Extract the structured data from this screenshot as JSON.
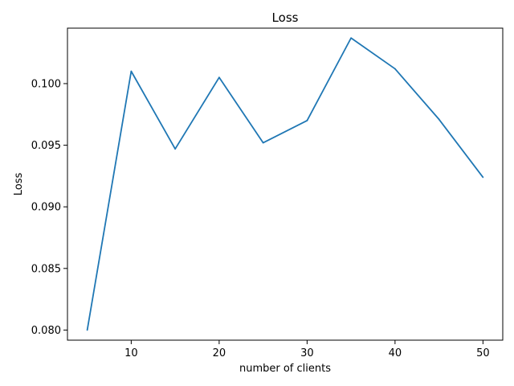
{
  "chart_data": {
    "type": "line",
    "title": "Loss",
    "xlabel": "number of clients",
    "ylabel": "Loss",
    "grid": false,
    "legend": "none",
    "xlim": [
      2.75,
      52.25
    ],
    "ylim": [
      0.07918,
      0.1045
    ],
    "xticks": [
      10,
      20,
      30,
      40,
      50
    ],
    "xtick_labels": [
      "10",
      "20",
      "30",
      "40",
      "50"
    ],
    "yticks": [
      0.08,
      0.085,
      0.09,
      0.095,
      0.1
    ],
    "ytick_labels": [
      "0.080",
      "0.085",
      "0.090",
      "0.095",
      "0.100"
    ],
    "series": [
      {
        "color": "#1f77b4",
        "x": [
          5,
          10,
          15,
          20,
          25,
          30,
          35,
          40,
          45,
          50
        ],
        "y": [
          0.08,
          0.101,
          0.0947,
          0.1005,
          0.0952,
          0.097,
          0.1037,
          0.1012,
          0.0971,
          0.0924
        ]
      }
    ]
  }
}
